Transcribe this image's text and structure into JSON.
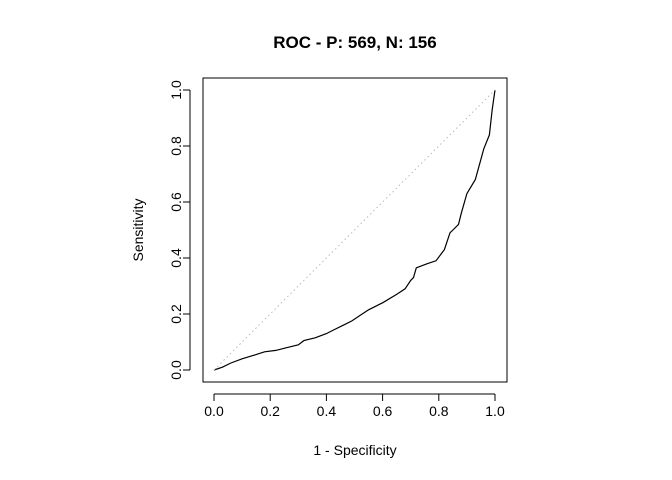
{
  "chart_data": {
    "type": "line",
    "title": "ROC - P: 569, N: 156",
    "xlabel": "1 - Specificity",
    "ylabel": "Sensitivity",
    "xlim": [
      0,
      1
    ],
    "ylim": [
      0,
      1
    ],
    "xticks": [
      "0.0",
      "0.2",
      "0.4",
      "0.6",
      "0.8",
      "1.0"
    ],
    "yticks": [
      "0.0",
      "0.2",
      "0.4",
      "0.6",
      "0.8",
      "1.0"
    ],
    "grid": false,
    "legend": "none",
    "series": [
      {
        "style": "solid",
        "color": "#000000",
        "x": [
          0,
          0.03,
          0.06,
          0.1,
          0.15,
          0.18,
          0.22,
          0.26,
          0.3,
          0.32,
          0.36,
          0.4,
          0.43,
          0.46,
          0.49,
          0.52,
          0.55,
          0.6,
          0.65,
          0.68,
          0.7,
          0.71,
          0.72,
          0.76,
          0.79,
          0.82,
          0.84,
          0.85,
          0.87,
          0.88,
          0.9,
          0.93,
          0.96,
          0.98,
          0.99,
          1.0
        ],
        "y": [
          0,
          0.01,
          0.025,
          0.04,
          0.055,
          0.065,
          0.07,
          0.08,
          0.09,
          0.105,
          0.115,
          0.13,
          0.145,
          0.16,
          0.175,
          0.195,
          0.215,
          0.24,
          0.27,
          0.29,
          0.32,
          0.33,
          0.365,
          0.38,
          0.39,
          0.43,
          0.49,
          0.5,
          0.52,
          0.56,
          0.63,
          0.68,
          0.79,
          0.84,
          0.93,
          1.0
        ]
      },
      {
        "style": "dotted",
        "color": "#bbbbbb",
        "x": [
          0,
          1
        ],
        "y": [
          0,
          1
        ]
      }
    ]
  }
}
